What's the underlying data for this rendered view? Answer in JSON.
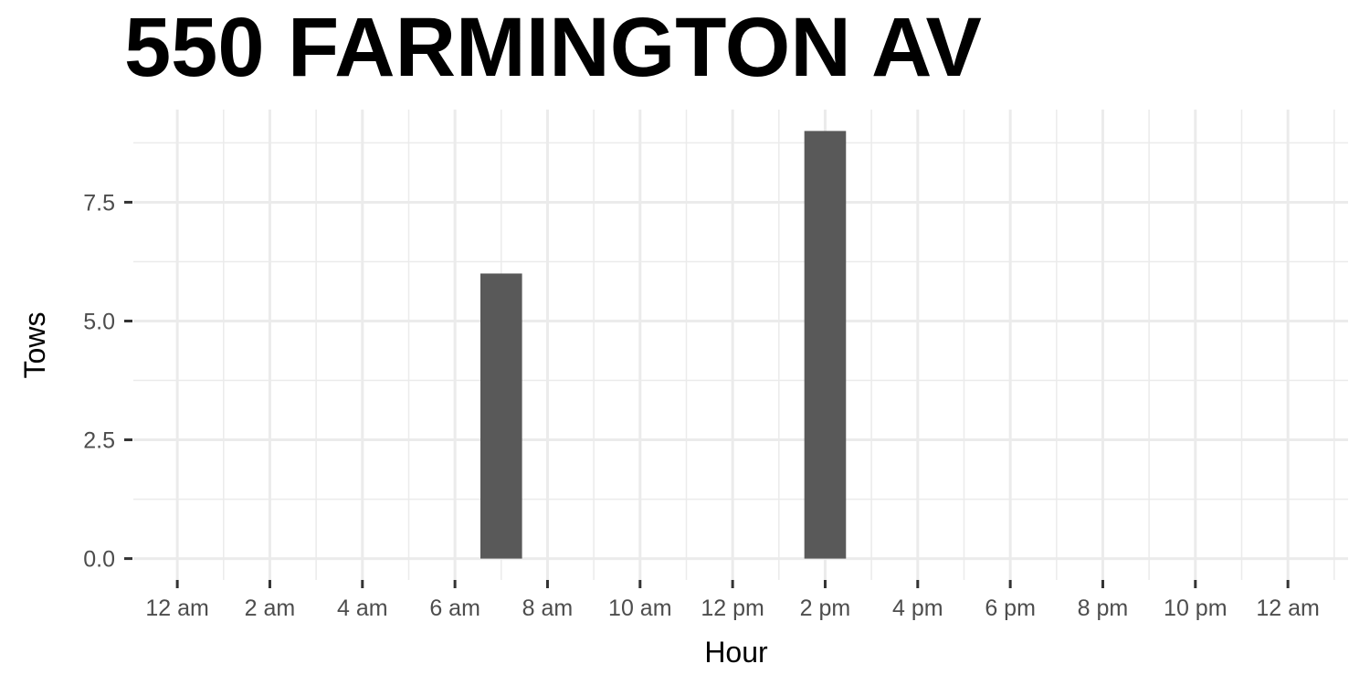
{
  "chart_data": {
    "type": "bar",
    "title": "550 FARMINGTON AV",
    "xlabel": "Hour",
    "ylabel": "Tows",
    "x_ticks": [
      {
        "hour": 0,
        "label": "12 am"
      },
      {
        "hour": 2,
        "label": "2 am"
      },
      {
        "hour": 4,
        "label": "4 am"
      },
      {
        "hour": 6,
        "label": "6 am"
      },
      {
        "hour": 8,
        "label": "8 am"
      },
      {
        "hour": 10,
        "label": "10 am"
      },
      {
        "hour": 12,
        "label": "12 pm"
      },
      {
        "hour": 14,
        "label": "2 pm"
      },
      {
        "hour": 16,
        "label": "4 pm"
      },
      {
        "hour": 18,
        "label": "6 pm"
      },
      {
        "hour": 20,
        "label": "8 pm"
      },
      {
        "hour": 22,
        "label": "10 pm"
      },
      {
        "hour": 24,
        "label": "12 am"
      }
    ],
    "y_ticks": [
      {
        "value": 0,
        "label": "0.0"
      },
      {
        "value": 2.5,
        "label": "2.5"
      },
      {
        "value": 5,
        "label": "5.0"
      },
      {
        "value": 7.5,
        "label": "7.5"
      }
    ],
    "bars": [
      {
        "hour": 7,
        "value": 6
      },
      {
        "hour": 14,
        "value": 9
      }
    ],
    "xlim": [
      -0.95,
      25.3
    ],
    "ylim": [
      -0.45,
      9.45
    ],
    "grid": true,
    "bar_color": "#595959",
    "grid_color": "#ebebeb",
    "axis_color": "#333333"
  }
}
